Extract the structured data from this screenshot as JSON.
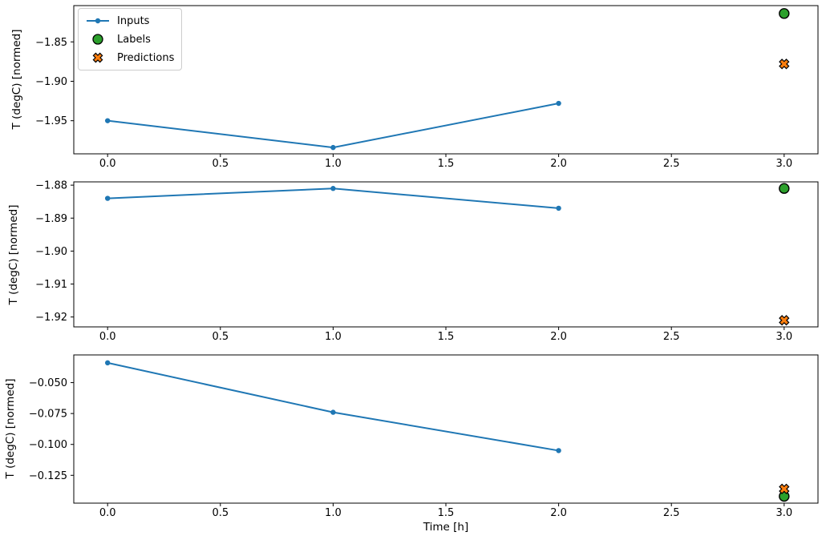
{
  "xlabel": "Time [h]",
  "ylabel": "T (degC) [normed]",
  "colors": {
    "inputs": "#1f77b4",
    "labels": "#2ca02c",
    "predictions": "#ff7f0e",
    "marker_edge": "#000000",
    "spine": "#000000",
    "legend_border": "#cccccc"
  },
  "legend": {
    "position": "upper-left",
    "items": [
      {
        "label": "Inputs",
        "icon": "line-dot-marker-icon",
        "color": "#1f77b4"
      },
      {
        "label": "Labels",
        "icon": "circle-marker-icon",
        "color": "#2ca02c"
      },
      {
        "label": "Predictions",
        "icon": "x-marker-icon",
        "color": "#ff7f0e"
      }
    ]
  },
  "chart_data": [
    {
      "type": "line",
      "title": "",
      "ylabel": "T (degC) [normed]",
      "xlim": [
        -0.15,
        3.15
      ],
      "ylim": [
        -1.992,
        -1.804
      ],
      "grid": false,
      "xticks": {
        "values": [
          0,
          0.5,
          1,
          1.5,
          2,
          2.5,
          3
        ],
        "labels": [
          "0.0",
          "0.5",
          "1.0",
          "1.5",
          "2.0",
          "2.5",
          "3.0"
        ]
      },
      "yticks": {
        "values": [
          -1.85,
          -1.9,
          -1.95
        ],
        "labels": [
          "−1.85",
          "−1.90",
          "−1.95"
        ]
      },
      "series": [
        {
          "name": "Inputs",
          "type": "line",
          "x": [
            0,
            1,
            2
          ],
          "y": [
            -1.95,
            -1.984,
            -1.928
          ]
        },
        {
          "name": "Labels",
          "type": "scatter_circle",
          "x": [
            3
          ],
          "y": [
            -1.814
          ]
        },
        {
          "name": "Predictions",
          "type": "scatter_x",
          "x": [
            3
          ],
          "y": [
            -1.878
          ]
        }
      ]
    },
    {
      "type": "line",
      "title": "",
      "ylabel": "T (degC) [normed]",
      "xlim": [
        -0.15,
        3.15
      ],
      "ylim": [
        -1.923,
        -1.879
      ],
      "grid": false,
      "xticks": {
        "values": [
          0,
          0.5,
          1,
          1.5,
          2,
          2.5,
          3
        ],
        "labels": [
          "0.0",
          "0.5",
          "1.0",
          "1.5",
          "2.0",
          "2.5",
          "3.0"
        ]
      },
      "yticks": {
        "values": [
          -1.88,
          -1.89,
          -1.9,
          -1.91,
          -1.92
        ],
        "labels": [
          "−1.88",
          "−1.89",
          "−1.90",
          "−1.91",
          "−1.92"
        ]
      },
      "series": [
        {
          "name": "Inputs",
          "type": "line",
          "x": [
            0,
            1,
            2
          ],
          "y": [
            -1.884,
            -1.881,
            -1.887
          ]
        },
        {
          "name": "Labels",
          "type": "scatter_circle",
          "x": [
            3
          ],
          "y": [
            -1.881
          ]
        },
        {
          "name": "Predictions",
          "type": "scatter_x",
          "x": [
            3
          ],
          "y": [
            -1.921
          ]
        }
      ]
    },
    {
      "type": "line",
      "title": "",
      "ylabel": "T (degC) [normed]",
      "xlim": [
        -0.15,
        3.15
      ],
      "ylim": [
        -0.1475,
        -0.0276
      ],
      "grid": false,
      "xticks": {
        "values": [
          0,
          0.5,
          1,
          1.5,
          2,
          2.5,
          3
        ],
        "labels": [
          "0.0",
          "0.5",
          "1.0",
          "1.5",
          "2.0",
          "2.5",
          "3.0"
        ]
      },
      "yticks": {
        "values": [
          -0.05,
          -0.075,
          -0.1,
          -0.125
        ],
        "labels": [
          "−0.050",
          "−0.075",
          "−0.100",
          "−0.125"
        ]
      },
      "series": [
        {
          "name": "Inputs",
          "type": "line",
          "x": [
            0,
            1,
            2
          ],
          "y": [
            -0.034,
            -0.074,
            -0.105
          ]
        },
        {
          "name": "Labels",
          "type": "scatter_circle",
          "x": [
            3
          ],
          "y": [
            -0.142
          ]
        },
        {
          "name": "Predictions",
          "type": "scatter_x",
          "x": [
            3
          ],
          "y": [
            -0.136
          ]
        }
      ]
    }
  ]
}
